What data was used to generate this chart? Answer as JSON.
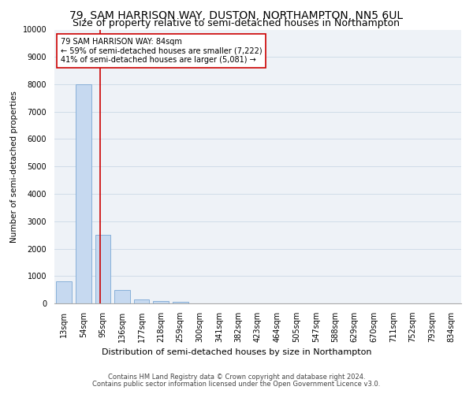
{
  "title": "79, SAM HARRISON WAY, DUSTON, NORTHAMPTON, NN5 6UL",
  "subtitle": "Size of property relative to semi-detached houses in Northampton",
  "xlabel": "Distribution of semi-detached houses by size in Northampton",
  "ylabel": "Number of semi-detached properties",
  "footer1": "Contains HM Land Registry data © Crown copyright and database right 2024.",
  "footer2": "Contains public sector information licensed under the Open Government Licence v3.0.",
  "categories": [
    "13sqm",
    "54sqm",
    "95sqm",
    "136sqm",
    "177sqm",
    "218sqm",
    "259sqm",
    "300sqm",
    "341sqm",
    "382sqm",
    "423sqm",
    "464sqm",
    "505sqm",
    "547sqm",
    "588sqm",
    "629sqm",
    "670sqm",
    "711sqm",
    "752sqm",
    "793sqm",
    "834sqm"
  ],
  "values": [
    800,
    8000,
    2500,
    500,
    150,
    100,
    50,
    0,
    0,
    0,
    0,
    0,
    0,
    0,
    0,
    0,
    0,
    0,
    0,
    0,
    0
  ],
  "bar_color": "#c6d9f0",
  "bar_edge_color": "#7ba7d4",
  "vline_x": 1.85,
  "vline_color": "#cc0000",
  "annotation_text": "79 SAM HARRISON WAY: 84sqm\n← 59% of semi-detached houses are smaller (7,222)\n41% of semi-detached houses are larger (5,081) →",
  "annotation_box_color": "#ffffff",
  "annotation_box_edge_color": "#cc0000",
  "ylim": [
    0,
    10000
  ],
  "yticks": [
    0,
    1000,
    2000,
    3000,
    4000,
    5000,
    6000,
    7000,
    8000,
    9000,
    10000
  ],
  "grid_color": "#d0dce8",
  "bg_color": "#eef2f7",
  "title_fontsize": 10,
  "subtitle_fontsize": 9,
  "ylabel_fontsize": 7.5,
  "xlabel_fontsize": 8,
  "footer_fontsize": 6,
  "tick_fontsize": 7,
  "annot_fontsize": 7
}
